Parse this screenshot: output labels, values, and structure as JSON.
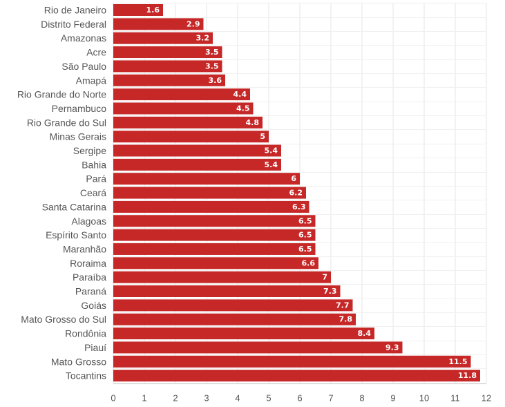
{
  "chart_data": {
    "type": "bar",
    "orientation": "horizontal",
    "categories": [
      "Rio de Janeiro",
      "Distrito Federal",
      "Amazonas",
      "Acre",
      "São Paulo",
      "Amapá",
      "Rio Grande do Norte",
      "Pernambuco",
      "Rio Grande do Sul",
      "Minas Gerais",
      "Sergipe",
      "Bahia",
      "Pará",
      "Ceará",
      "Santa Catarina",
      "Alagoas",
      "Espírito Santo",
      "Maranhão",
      "Roraima",
      "Paraíba",
      "Paraná",
      "Goiás",
      "Mato Grosso do Sul",
      "Rondônia",
      "Piauí",
      "Mato Grosso",
      "Tocantins"
    ],
    "values": [
      1.6,
      2.9,
      3.2,
      3.5,
      3.5,
      3.6,
      4.4,
      4.5,
      4.8,
      5,
      5.4,
      5.4,
      6,
      6.2,
      6.3,
      6.5,
      6.5,
      6.5,
      6.6,
      7,
      7.3,
      7.7,
      7.8,
      8.4,
      9.3,
      11.5,
      11.8
    ],
    "value_labels": [
      "1.6",
      "2.9",
      "3.2",
      "3.5",
      "3.5",
      "3.6",
      "4.4",
      "4.5",
      "4.8",
      "5",
      "5.4",
      "5.4",
      "6",
      "6.2",
      "6.3",
      "6.5",
      "6.5",
      "6.5",
      "6.6",
      "7",
      "7.3",
      "7.7",
      "7.8",
      "8.4",
      "9.3",
      "11.5",
      "11.8"
    ],
    "xlim": [
      0,
      12
    ],
    "xticks": [
      "0",
      "1",
      "2",
      "3",
      "4",
      "5",
      "6",
      "7",
      "8",
      "9",
      "10",
      "11",
      "12"
    ],
    "grid": true,
    "legend": "none",
    "bar_color": "#c62828"
  }
}
